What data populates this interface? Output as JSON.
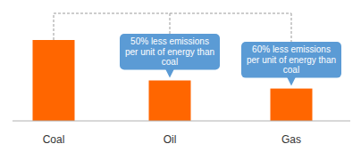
{
  "chart_data": {
    "type": "bar",
    "categories": [
      "Coal",
      "Oil",
      "Gas"
    ],
    "values": [
      100,
      50,
      40
    ],
    "color": "#ff6600",
    "ylim": [
      0,
      100
    ],
    "tick_labels": "x",
    "annotations": [
      {
        "text": "50% less emissions per unit of energy than coal",
        "category": "Oil"
      },
      {
        "text": "60% less emissions per unit of energy than coal",
        "category": "Gas"
      }
    ]
  }
}
